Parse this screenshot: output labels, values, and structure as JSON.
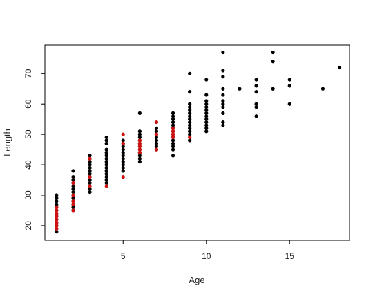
{
  "chart_data": {
    "type": "scatter",
    "title": "",
    "xlabel": "Age",
    "ylabel": "Length",
    "xlim": [
      0.3,
      18.6
    ],
    "ylim": [
      15.2,
      79.4
    ],
    "xticks": [
      5,
      10,
      15
    ],
    "yticks": [
      20,
      30,
      40,
      50,
      60,
      70
    ],
    "grid": false,
    "legend": "none",
    "series": [
      {
        "color": "#000000",
        "points": [
          [
            1,
            18
          ],
          [
            1,
            19
          ],
          [
            1,
            20
          ],
          [
            1,
            21
          ],
          [
            1,
            22
          ],
          [
            1,
            23
          ],
          [
            1,
            24
          ],
          [
            1,
            25
          ],
          [
            1,
            26
          ],
          [
            1,
            27
          ],
          [
            1,
            28
          ],
          [
            1,
            29
          ],
          [
            1,
            30
          ],
          [
            2,
            25
          ],
          [
            2,
            26
          ],
          [
            2,
            27
          ],
          [
            2,
            28
          ],
          [
            2,
            29
          ],
          [
            2,
            30
          ],
          [
            2,
            31
          ],
          [
            2,
            32
          ],
          [
            2,
            33
          ],
          [
            2,
            34
          ],
          [
            2,
            35
          ],
          [
            2,
            36
          ],
          [
            2,
            38
          ],
          [
            3,
            31
          ],
          [
            3,
            32
          ],
          [
            3,
            33
          ],
          [
            3,
            34
          ],
          [
            3,
            35
          ],
          [
            3,
            36
          ],
          [
            3,
            37
          ],
          [
            3,
            38
          ],
          [
            3,
            39
          ],
          [
            3,
            40
          ],
          [
            3,
            41
          ],
          [
            3,
            42
          ],
          [
            3,
            43
          ],
          [
            4,
            34
          ],
          [
            4,
            35
          ],
          [
            4,
            36
          ],
          [
            4,
            37
          ],
          [
            4,
            38
          ],
          [
            4,
            39
          ],
          [
            4,
            40
          ],
          [
            4,
            41
          ],
          [
            4,
            42
          ],
          [
            4,
            43
          ],
          [
            4,
            44
          ],
          [
            4,
            45
          ],
          [
            4,
            47
          ],
          [
            4,
            48
          ],
          [
            4,
            49
          ],
          [
            5,
            38
          ],
          [
            5,
            39
          ],
          [
            5,
            40
          ],
          [
            5,
            41
          ],
          [
            5,
            42
          ],
          [
            5,
            43
          ],
          [
            5,
            44
          ],
          [
            5,
            45
          ],
          [
            5,
            46
          ],
          [
            5,
            47
          ],
          [
            5,
            48
          ],
          [
            6,
            41
          ],
          [
            6,
            42
          ],
          [
            6,
            43
          ],
          [
            6,
            44
          ],
          [
            6,
            45
          ],
          [
            6,
            46
          ],
          [
            6,
            47
          ],
          [
            6,
            48
          ],
          [
            6,
            49
          ],
          [
            6,
            50
          ],
          [
            6,
            51
          ],
          [
            6,
            57
          ],
          [
            7,
            45
          ],
          [
            7,
            46
          ],
          [
            7,
            47
          ],
          [
            7,
            48
          ],
          [
            7,
            49
          ],
          [
            7,
            50
          ],
          [
            7,
            51
          ],
          [
            7,
            52
          ],
          [
            8,
            43
          ],
          [
            8,
            45
          ],
          [
            8,
            46
          ],
          [
            8,
            47
          ],
          [
            8,
            48
          ],
          [
            8,
            49
          ],
          [
            8,
            50
          ],
          [
            8,
            51
          ],
          [
            8,
            52
          ],
          [
            8,
            53
          ],
          [
            8,
            54
          ],
          [
            8,
            55
          ],
          [
            8,
            56
          ],
          [
            8,
            57
          ],
          [
            9,
            48
          ],
          [
            9,
            50
          ],
          [
            9,
            51
          ],
          [
            9,
            52
          ],
          [
            9,
            53
          ],
          [
            9,
            54
          ],
          [
            9,
            55
          ],
          [
            9,
            56
          ],
          [
            9,
            57
          ],
          [
            9,
            58
          ],
          [
            9,
            59
          ],
          [
            9,
            60
          ],
          [
            9,
            64
          ],
          [
            9,
            70
          ],
          [
            10,
            51
          ],
          [
            10,
            52
          ],
          [
            10,
            53
          ],
          [
            10,
            54
          ],
          [
            10,
            55
          ],
          [
            10,
            56
          ],
          [
            10,
            57
          ],
          [
            10,
            58
          ],
          [
            10,
            59
          ],
          [
            10,
            60
          ],
          [
            10,
            61
          ],
          [
            10,
            63
          ],
          [
            10,
            68
          ],
          [
            11,
            53
          ],
          [
            11,
            54
          ],
          [
            11,
            57
          ],
          [
            11,
            59
          ],
          [
            11,
            60
          ],
          [
            11,
            61
          ],
          [
            11,
            63
          ],
          [
            11,
            65
          ],
          [
            11,
            69
          ],
          [
            11,
            71
          ],
          [
            11,
            77
          ],
          [
            12,
            65
          ],
          [
            13,
            56
          ],
          [
            13,
            59
          ],
          [
            13,
            60
          ],
          [
            13,
            64
          ],
          [
            13,
            66
          ],
          [
            13,
            68
          ],
          [
            14,
            65
          ],
          [
            14,
            74
          ],
          [
            14,
            77
          ],
          [
            15,
            60
          ],
          [
            15,
            66
          ],
          [
            15,
            68
          ],
          [
            17,
            65
          ],
          [
            18,
            72
          ]
        ]
      },
      {
        "color": "#d01010",
        "points": [
          [
            1,
            19
          ],
          [
            1,
            20
          ],
          [
            1,
            21
          ],
          [
            1,
            22
          ],
          [
            1,
            23
          ],
          [
            1,
            24
          ],
          [
            1,
            25
          ],
          [
            1,
            26
          ],
          [
            2,
            25
          ],
          [
            2,
            27
          ],
          [
            2,
            28
          ],
          [
            2,
            30
          ],
          [
            2,
            34
          ],
          [
            3,
            33
          ],
          [
            3,
            36
          ],
          [
            3,
            42
          ],
          [
            4,
            33
          ],
          [
            5,
            36
          ],
          [
            5,
            47
          ],
          [
            5,
            50
          ],
          [
            6,
            44
          ],
          [
            6,
            45
          ],
          [
            6,
            46
          ],
          [
            6,
            47
          ],
          [
            6,
            48
          ],
          [
            7,
            45
          ],
          [
            7,
            50
          ],
          [
            7,
            54
          ],
          [
            8,
            49
          ],
          [
            8,
            50
          ],
          [
            8,
            51
          ],
          [
            8,
            52
          ],
          [
            9,
            49
          ]
        ]
      }
    ]
  }
}
